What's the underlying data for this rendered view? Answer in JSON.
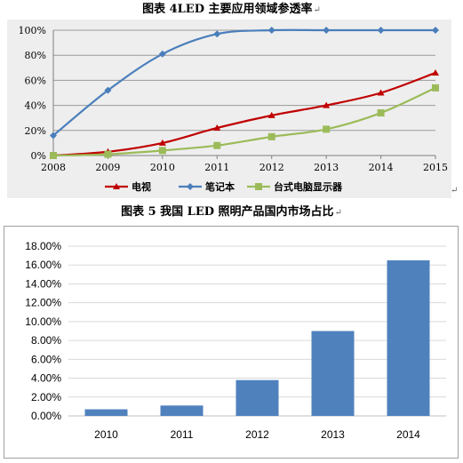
{
  "captions": {
    "chart1": "图表 4LED 主要应用领域参透率",
    "chart2": "图表 5 我国 LED 照明产品国内市场占比",
    "para_mark": "↵"
  },
  "chart_data": [
    {
      "type": "line",
      "title": "图表 4LED 主要应用领域参透率",
      "x": [
        2008,
        2009,
        2010,
        2011,
        2012,
        2013,
        2014,
        2015
      ],
      "ylim": [
        0,
        100
      ],
      "yticks": [
        0,
        20,
        40,
        60,
        80,
        100
      ],
      "ytick_labels": [
        "0%",
        "20%",
        "40%",
        "60%",
        "80%",
        "100%"
      ],
      "grid": "horizontal",
      "legend_position": "bottom",
      "series": [
        {
          "name": "电视",
          "color": "#c00000",
          "marker": "triangle",
          "values": [
            0,
            3,
            10,
            22,
            32,
            40,
            50,
            66
          ]
        },
        {
          "name": "笔记本",
          "color": "#4a7ebb",
          "marker": "diamond",
          "values": [
            16,
            52,
            81,
            97,
            100,
            100,
            100,
            100
          ]
        },
        {
          "name": "台式电脑显示器",
          "color": "#9bbb59",
          "marker": "square",
          "values": [
            0,
            1,
            4,
            8,
            15,
            21,
            34,
            54
          ]
        }
      ]
    },
    {
      "type": "bar",
      "title": "图表 5 我国 LED 照明产品国内市场占比",
      "categories": [
        "2010",
        "2011",
        "2012",
        "2013",
        "2014"
      ],
      "values": [
        0.7,
        1.1,
        3.8,
        9.0,
        16.5
      ],
      "ylim": [
        0,
        18
      ],
      "yticks": [
        0,
        2,
        4,
        6,
        8,
        10,
        12,
        14,
        16,
        18
      ],
      "ytick_labels": [
        "0.00%",
        "2.00%",
        "4.00%",
        "6.00%",
        "8.00%",
        "10.00%",
        "12.00%",
        "14.00%",
        "16.00%",
        "18.00%"
      ],
      "color": "#4f81bd",
      "grid": "horizontal",
      "legend_position": "none"
    }
  ]
}
